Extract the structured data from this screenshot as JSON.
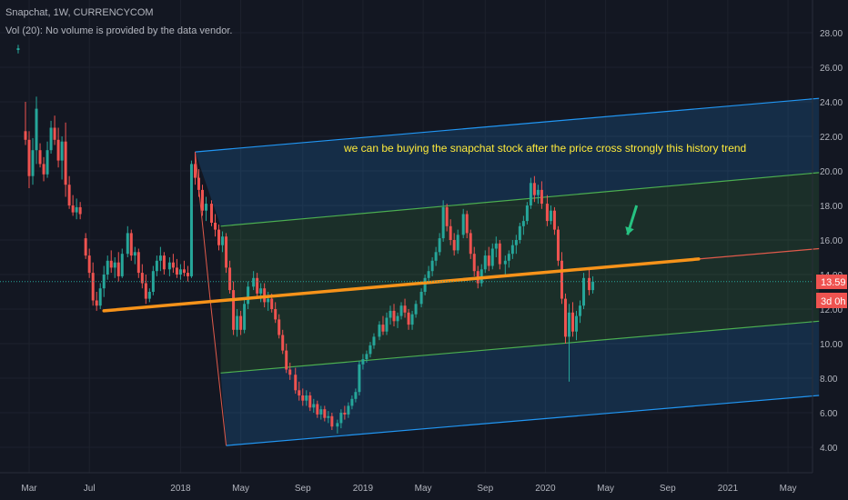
{
  "header": {
    "symbol_line": "Snapchat, 1W, CURRENCYCOM",
    "volume_note": "Vol (20): No volume is provided by the data vendor."
  },
  "annotation": {
    "text": "we can be buying the snapchat stock after the price cross strongly this history trend"
  },
  "price_badge": {
    "value": "13.59",
    "countdown": "3d 0h"
  },
  "colors": {
    "background": "#131722",
    "grid": "#1e222d",
    "up": "#26a69a",
    "down": "#ef5350",
    "channel_outer": "#2196f3",
    "channel_inner": "#4caf50",
    "trendline": "#f7931a",
    "trend_extension": "#e05a4b",
    "annotation": "#ffeb3b",
    "arrow": "#26c281",
    "axis_text": "#b2b5be"
  },
  "chart_data": {
    "type": "candlestick",
    "interval": "1W",
    "ylim": [
      3.0,
      29.5
    ],
    "y_ticks": [
      "4.00",
      "6.00",
      "8.00",
      "10.00",
      "12.00",
      "14.00",
      "16.00",
      "18.00",
      "20.00",
      "22.00",
      "24.00",
      "26.00",
      "28.00"
    ],
    "x_ticks": [
      {
        "label": "Mar",
        "t": 2017.17
      },
      {
        "label": "Jul",
        "t": 2017.5
      },
      {
        "label": "2018",
        "t": 2018.0
      },
      {
        "label": "May",
        "t": 2018.33
      },
      {
        "label": "Sep",
        "t": 2018.67
      },
      {
        "label": "2019",
        "t": 2019.0
      },
      {
        "label": "May",
        "t": 2019.33
      },
      {
        "label": "Sep",
        "t": 2019.67
      },
      {
        "label": "2020",
        "t": 2020.0
      },
      {
        "label": "May",
        "t": 2020.33
      },
      {
        "label": "Sep",
        "t": 2020.67
      },
      {
        "label": "2021",
        "t": 2021.0
      },
      {
        "label": "May",
        "t": 2021.33
      }
    ],
    "pitchfork": {
      "upper": [
        [
          2018.08,
          21.1
        ],
        [
          2021.5,
          24.2
        ]
      ],
      "upper_inner": [
        [
          2018.22,
          16.8
        ],
        [
          2021.5,
          19.9
        ]
      ],
      "lower_inner": [
        [
          2018.22,
          8.3
        ],
        [
          2021.5,
          11.3
        ]
      ],
      "lower": [
        [
          2018.25,
          4.1
        ],
        [
          2021.5,
          7.0
        ]
      ],
      "handle": [
        [
          2018.16,
          12.8
        ],
        [
          2018.25,
          4.1
        ]
      ]
    },
    "trendline": {
      "start": [
        2017.58,
        11.9
      ],
      "end": [
        2020.84,
        14.9
      ],
      "extended_end": [
        2021.5,
        15.5
      ]
    },
    "arrow": {
      "from": [
        2020.5,
        18.0
      ],
      "to": [
        2020.45,
        16.3
      ]
    },
    "last_price": 13.59,
    "candles": [
      [
        2017.11,
        27.0,
        27.3,
        26.8,
        27.1
      ],
      [
        2017.15,
        22.3,
        24.0,
        21.5,
        21.8
      ],
      [
        2017.17,
        21.8,
        22.3,
        19.0,
        19.7
      ],
      [
        2017.19,
        19.7,
        21.9,
        19.2,
        21.2
      ],
      [
        2017.21,
        21.2,
        24.3,
        20.4,
        23.6
      ],
      [
        2017.23,
        21.2,
        21.6,
        20.2,
        20.4
      ],
      [
        2017.25,
        20.4,
        20.8,
        19.4,
        19.8
      ],
      [
        2017.27,
        19.8,
        21.7,
        19.6,
        21.2
      ],
      [
        2017.29,
        21.2,
        22.9,
        21.0,
        22.5
      ],
      [
        2017.31,
        22.5,
        23.2,
        21.5,
        21.8
      ],
      [
        2017.33,
        21.8,
        22.5,
        20.2,
        20.6
      ],
      [
        2017.35,
        20.6,
        22.0,
        19.5,
        21.7
      ],
      [
        2017.37,
        21.7,
        22.8,
        18.5,
        19.2
      ],
      [
        2017.39,
        19.2,
        19.7,
        17.8,
        18.0
      ],
      [
        2017.41,
        18.0,
        18.6,
        17.4,
        17.6
      ],
      [
        2017.43,
        17.6,
        18.4,
        17.2,
        17.9
      ],
      [
        2017.45,
        17.9,
        18.2,
        17.2,
        17.5
      ],
      [
        2017.48,
        16.1,
        16.4,
        14.9,
        15.1
      ],
      [
        2017.5,
        15.1,
        15.5,
        13.8,
        14.1
      ],
      [
        2017.52,
        14.1,
        14.7,
        12.2,
        12.5
      ],
      [
        2017.54,
        12.5,
        13.0,
        11.9,
        12.2
      ],
      [
        2017.56,
        12.2,
        13.5,
        12.0,
        13.2
      ],
      [
        2017.58,
        13.2,
        14.5,
        12.7,
        14.0
      ],
      [
        2017.6,
        14.0,
        15.1,
        13.7,
        14.8
      ],
      [
        2017.62,
        14.8,
        15.4,
        14.1,
        14.4
      ],
      [
        2017.64,
        14.4,
        15.0,
        13.8,
        14.7
      ],
      [
        2017.66,
        14.7,
        15.3,
        13.6,
        13.9
      ],
      [
        2017.68,
        13.9,
        15.5,
        13.8,
        15.2
      ],
      [
        2017.71,
        15.2,
        16.8,
        15.0,
        16.4
      ],
      [
        2017.73,
        16.4,
        16.6,
        14.8,
        15.1
      ],
      [
        2017.75,
        15.1,
        15.6,
        14.6,
        15.3
      ],
      [
        2017.77,
        15.3,
        15.5,
        13.8,
        14.1
      ],
      [
        2017.79,
        14.1,
        14.6,
        13.2,
        13.5
      ],
      [
        2017.81,
        13.5,
        14.0,
        12.3,
        12.6
      ],
      [
        2017.83,
        12.6,
        13.2,
        12.4,
        13.0
      ],
      [
        2017.85,
        13.0,
        14.5,
        12.8,
        14.2
      ],
      [
        2017.87,
        14.2,
        15.1,
        13.9,
        14.8
      ],
      [
        2017.89,
        14.8,
        15.6,
        14.2,
        15.1
      ],
      [
        2017.91,
        15.1,
        15.3,
        14.0,
        14.3
      ],
      [
        2017.94,
        14.3,
        15.0,
        13.9,
        14.7
      ],
      [
        2017.96,
        14.7,
        15.2,
        14.1,
        14.4
      ],
      [
        2017.98,
        14.4,
        14.9,
        13.8,
        14.0
      ],
      [
        2018.0,
        14.0,
        14.6,
        13.7,
        14.3
      ],
      [
        2018.02,
        14.3,
        14.8,
        13.9,
        14.1
      ],
      [
        2018.04,
        14.1,
        14.5,
        13.6,
        13.9
      ],
      [
        2018.06,
        13.9,
        20.6,
        13.8,
        20.4
      ],
      [
        2018.08,
        20.4,
        21.1,
        19.2,
        19.6
      ],
      [
        2018.1,
        19.6,
        20.1,
        18.5,
        18.9
      ],
      [
        2018.12,
        18.9,
        19.2,
        17.4,
        17.7
      ],
      [
        2018.14,
        17.7,
        18.5,
        17.1,
        18.1
      ],
      [
        2018.17,
        18.1,
        18.3,
        16.8,
        17.0
      ],
      [
        2018.19,
        17.0,
        17.5,
        16.2,
        16.6
      ],
      [
        2018.21,
        16.6,
        16.9,
        15.4,
        15.7
      ],
      [
        2018.23,
        15.7,
        16.5,
        15.3,
        16.2
      ],
      [
        2018.25,
        16.2,
        16.4,
        14.1,
        14.4
      ],
      [
        2018.27,
        14.4,
        14.8,
        12.9,
        13.1
      ],
      [
        2018.29,
        13.1,
        13.6,
        10.5,
        10.8
      ],
      [
        2018.31,
        10.8,
        12.0,
        10.4,
        11.6
      ],
      [
        2018.33,
        11.6,
        11.9,
        10.5,
        10.8
      ],
      [
        2018.35,
        10.8,
        12.6,
        10.6,
        12.3
      ],
      [
        2018.37,
        12.3,
        13.6,
        12.0,
        13.3
      ],
      [
        2018.4,
        13.3,
        14.2,
        13.1,
        13.8
      ],
      [
        2018.42,
        13.8,
        14.1,
        12.6,
        12.9
      ],
      [
        2018.44,
        12.9,
        13.5,
        12.4,
        13.2
      ],
      [
        2018.46,
        13.2,
        13.5,
        12.1,
        12.4
      ],
      [
        2018.48,
        12.4,
        13.0,
        11.9,
        12.6
      ],
      [
        2018.5,
        12.6,
        12.9,
        11.8,
        12.0
      ],
      [
        2018.52,
        12.0,
        12.4,
        11.2,
        11.4
      ],
      [
        2018.54,
        11.4,
        11.7,
        10.3,
        10.5
      ],
      [
        2018.56,
        10.5,
        10.8,
        9.4,
        9.6
      ],
      [
        2018.58,
        9.6,
        10.0,
        8.3,
        8.5
      ],
      [
        2018.6,
        8.5,
        8.9,
        7.9,
        8.2
      ],
      [
        2018.63,
        8.2,
        8.6,
        7.1,
        7.3
      ],
      [
        2018.65,
        7.3,
        7.8,
        6.7,
        7.0
      ],
      [
        2018.67,
        7.0,
        7.4,
        6.4,
        6.7
      ],
      [
        2018.69,
        6.7,
        7.3,
        6.4,
        7.0
      ],
      [
        2018.71,
        7.0,
        7.2,
        6.1,
        6.3
      ],
      [
        2018.73,
        6.3,
        6.8,
        6.0,
        6.5
      ],
      [
        2018.75,
        6.5,
        6.7,
        5.7,
        5.9
      ],
      [
        2018.77,
        5.9,
        6.4,
        5.6,
        6.2
      ],
      [
        2018.79,
        6.2,
        6.4,
        5.5,
        5.7
      ],
      [
        2018.81,
        5.7,
        6.1,
        5.4,
        5.8
      ],
      [
        2018.83,
        5.8,
        6.0,
        5.0,
        5.2
      ],
      [
        2018.86,
        5.2,
        5.6,
        4.8,
        5.4
      ],
      [
        2018.88,
        5.4,
        6.2,
        5.1,
        6.0
      ],
      [
        2018.9,
        6.0,
        6.4,
        5.6,
        5.9
      ],
      [
        2018.92,
        5.9,
        6.6,
        5.7,
        6.4
      ],
      [
        2018.94,
        6.4,
        7.0,
        6.2,
        6.8
      ],
      [
        2018.96,
        6.8,
        7.4,
        6.6,
        7.2
      ],
      [
        2018.98,
        7.2,
        9.0,
        7.0,
        8.8
      ],
      [
        2019.0,
        8.8,
        9.4,
        8.5,
        9.1
      ],
      [
        2019.02,
        9.1,
        9.6,
        8.9,
        9.4
      ],
      [
        2019.04,
        9.4,
        10.1,
        9.2,
        9.9
      ],
      [
        2019.06,
        9.9,
        10.6,
        9.7,
        10.4
      ],
      [
        2019.09,
        10.4,
        11.3,
        10.2,
        11.1
      ],
      [
        2019.11,
        11.1,
        11.6,
        10.5,
        10.7
      ],
      [
        2019.13,
        10.7,
        11.8,
        10.5,
        11.5
      ],
      [
        2019.15,
        11.5,
        12.2,
        11.1,
        11.9
      ],
      [
        2019.17,
        11.9,
        12.3,
        11.0,
        11.3
      ],
      [
        2019.19,
        11.3,
        11.8,
        10.9,
        11.6
      ],
      [
        2019.21,
        11.6,
        12.4,
        11.4,
        12.2
      ],
      [
        2019.23,
        12.2,
        12.6,
        11.5,
        11.8
      ],
      [
        2019.25,
        11.8,
        12.0,
        10.8,
        11.1
      ],
      [
        2019.27,
        11.1,
        11.9,
        10.8,
        11.7
      ],
      [
        2019.29,
        11.7,
        12.5,
        11.5,
        12.3
      ],
      [
        2019.32,
        12.3,
        13.2,
        12.1,
        13.0
      ],
      [
        2019.34,
        13.0,
        14.0,
        12.8,
        13.8
      ],
      [
        2019.36,
        13.8,
        14.5,
        13.5,
        14.2
      ],
      [
        2019.38,
        14.2,
        15.0,
        13.9,
        14.8
      ],
      [
        2019.4,
        14.8,
        15.6,
        14.5,
        15.3
      ],
      [
        2019.42,
        15.3,
        16.4,
        15.1,
        16.1
      ],
      [
        2019.44,
        16.1,
        18.3,
        15.9,
        17.9
      ],
      [
        2019.46,
        17.9,
        18.1,
        16.5,
        16.8
      ],
      [
        2019.48,
        16.8,
        17.2,
        15.7,
        16.0
      ],
      [
        2019.5,
        16.0,
        16.4,
        15.1,
        15.4
      ],
      [
        2019.52,
        15.4,
        16.6,
        15.2,
        16.3
      ],
      [
        2019.55,
        16.3,
        17.8,
        16.1,
        17.5
      ],
      [
        2019.57,
        17.5,
        17.7,
        16.1,
        16.4
      ],
      [
        2019.59,
        16.4,
        16.6,
        14.9,
        15.2
      ],
      [
        2019.61,
        15.2,
        15.6,
        13.9,
        14.2
      ],
      [
        2019.63,
        14.2,
        14.5,
        13.2,
        13.5
      ],
      [
        2019.65,
        13.5,
        14.6,
        13.3,
        14.3
      ],
      [
        2019.67,
        14.3,
        15.4,
        14.1,
        15.1
      ],
      [
        2019.69,
        15.1,
        15.6,
        14.2,
        14.5
      ],
      [
        2019.71,
        14.5,
        15.8,
        14.3,
        15.5
      ],
      [
        2019.73,
        15.5,
        16.2,
        15.0,
        15.8
      ],
      [
        2019.75,
        15.8,
        16.0,
        14.3,
        14.6
      ],
      [
        2019.78,
        14.6,
        15.1,
        14.0,
        14.8
      ],
      [
        2019.8,
        14.8,
        15.4,
        14.4,
        15.2
      ],
      [
        2019.82,
        15.2,
        16.0,
        14.9,
        15.7
      ],
      [
        2019.84,
        15.7,
        16.3,
        15.2,
        16.0
      ],
      [
        2019.86,
        16.0,
        17.0,
        15.8,
        16.8
      ],
      [
        2019.88,
        16.8,
        17.4,
        16.3,
        17.1
      ],
      [
        2019.9,
        17.1,
        18.2,
        16.9,
        18.0
      ],
      [
        2019.92,
        18.0,
        19.6,
        17.8,
        19.3
      ],
      [
        2019.94,
        19.3,
        19.7,
        18.2,
        18.6
      ],
      [
        2019.96,
        18.6,
        19.2,
        18.1,
        18.9
      ],
      [
        2019.98,
        18.9,
        19.4,
        17.8,
        18.1
      ],
      [
        2020.01,
        18.1,
        18.6,
        16.8,
        17.1
      ],
      [
        2020.03,
        17.1,
        18.0,
        16.9,
        17.7
      ],
      [
        2020.05,
        17.7,
        17.9,
        16.3,
        16.6
      ],
      [
        2020.07,
        16.6,
        16.8,
        14.5,
        14.8
      ],
      [
        2020.09,
        14.8,
        15.3,
        12.3,
        12.6
      ],
      [
        2020.11,
        12.6,
        12.9,
        10.0,
        10.4
      ],
      [
        2020.13,
        10.4,
        12.3,
        7.8,
        11.8
      ],
      [
        2020.15,
        11.8,
        12.4,
        10.4,
        10.7
      ],
      [
        2020.17,
        10.7,
        11.9,
        10.2,
        11.6
      ],
      [
        2020.19,
        11.6,
        12.5,
        11.2,
        12.2
      ],
      [
        2020.21,
        12.2,
        14.1,
        12.0,
        13.8
      ],
      [
        2020.24,
        13.8,
        14.4,
        12.8,
        13.1
      ],
      [
        2020.26,
        13.1,
        13.9,
        12.9,
        13.59
      ]
    ]
  }
}
